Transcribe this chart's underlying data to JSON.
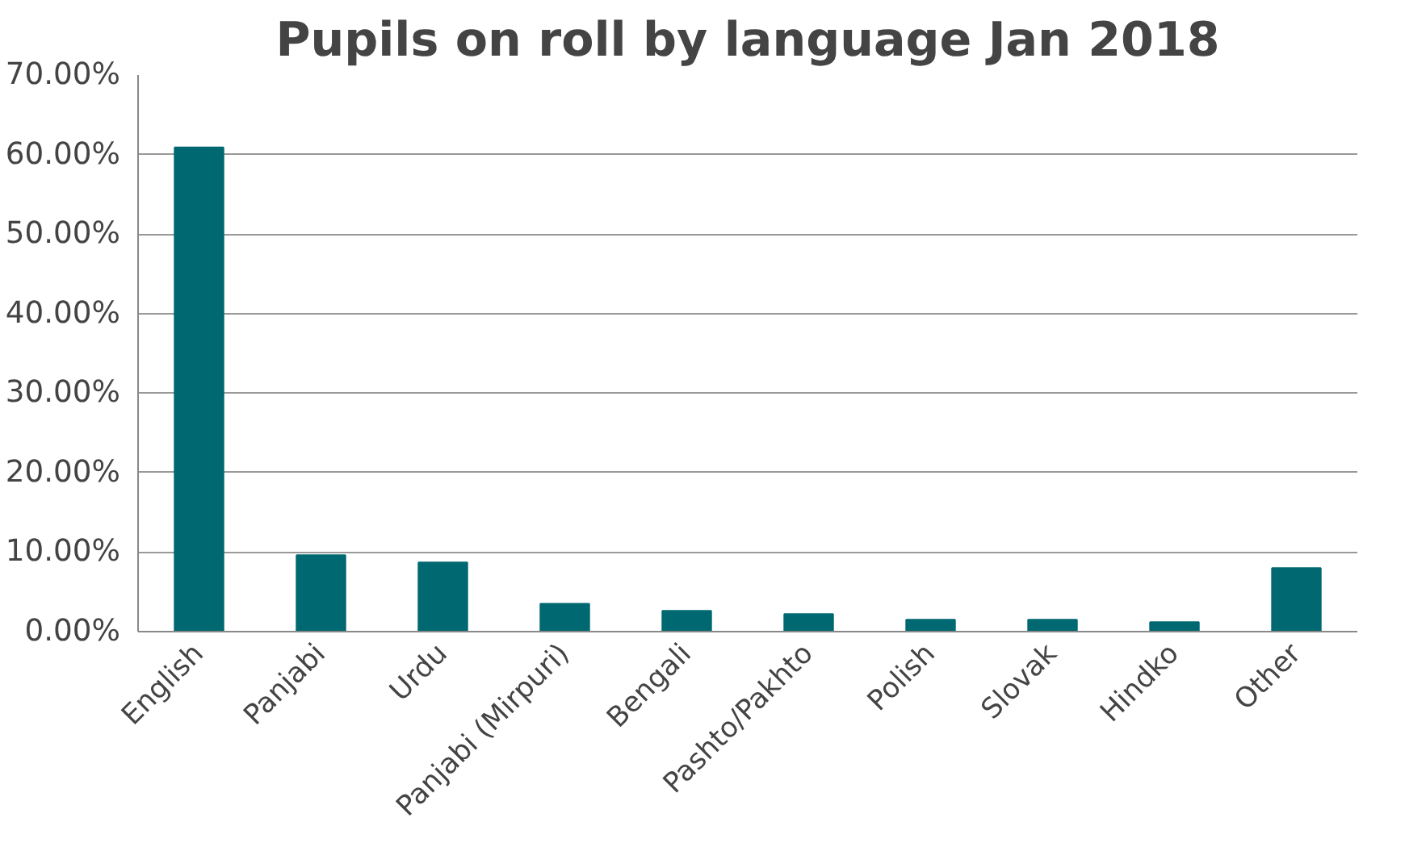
{
  "chart_data": {
    "type": "bar",
    "title": "Pupils on roll by language Jan 2018",
    "categories": [
      "English",
      "Panjabi",
      "Urdu",
      "Panjabi (Mirpuri)",
      "Bengali",
      "Pashto/Pakhto",
      "Polish",
      "Slovak",
      "Hindko",
      "Other"
    ],
    "values": [
      60.9,
      9.6,
      8.7,
      3.5,
      2.6,
      2.2,
      1.5,
      1.5,
      1.2,
      8.0
    ],
    "color": "#006870",
    "ylim": [
      0,
      70
    ],
    "yticks": [
      {
        "value": 0,
        "label": "0.00%"
      },
      {
        "value": 10,
        "label": "10.00%"
      },
      {
        "value": 20,
        "label": "20.00%"
      },
      {
        "value": 30,
        "label": "30.00%"
      },
      {
        "value": 40,
        "label": "40.00%"
      },
      {
        "value": 50,
        "label": "50.00%"
      },
      {
        "value": 60,
        "label": "60.00%"
      },
      {
        "value": 70,
        "label": "70.00%"
      }
    ],
    "grid": "y"
  }
}
